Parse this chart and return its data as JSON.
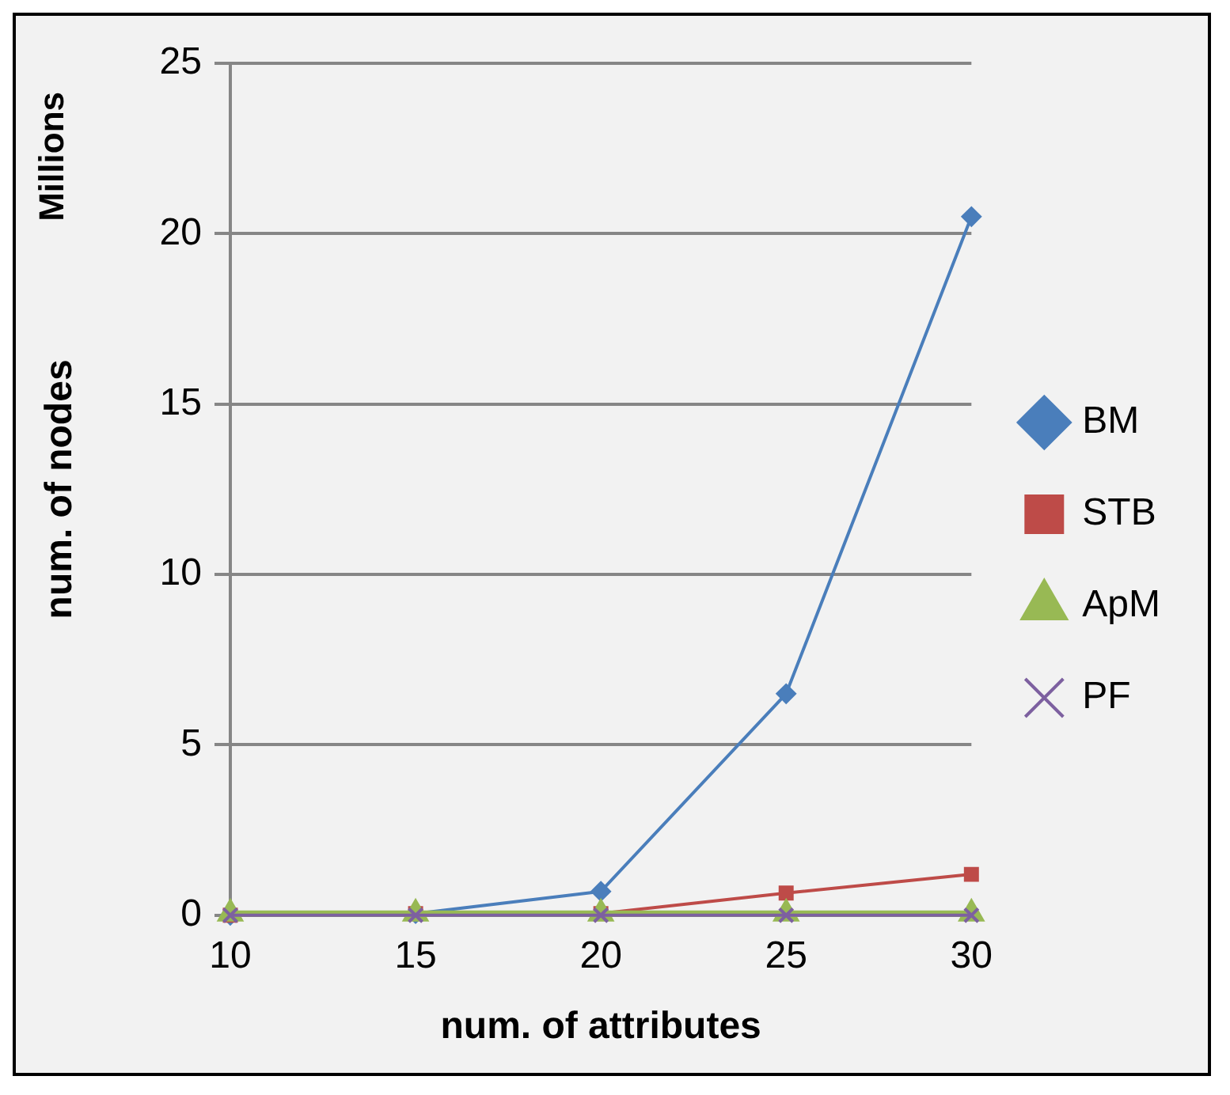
{
  "chart_data": {
    "type": "line",
    "xlabel": "num. of attributes",
    "ylabel": "num. of nodes",
    "annotations": [
      "Millions"
    ],
    "categories": [
      "10",
      "15",
      "20",
      "25",
      "30"
    ],
    "ylim": [
      0,
      25
    ],
    "yticks": [
      0,
      5,
      10,
      15,
      20,
      25
    ],
    "grid": "y",
    "legend": "right",
    "line_style": "solid",
    "series": [
      {
        "name": "BM",
        "color": "#4a7ebb",
        "marker": "diamond",
        "values": [
          0,
          0.05,
          0.7,
          6.5,
          20.5
        ]
      },
      {
        "name": "STB",
        "color": "#be4b48",
        "marker": "square",
        "values": [
          0,
          0.05,
          0.05,
          0.65,
          1.2
        ]
      },
      {
        "name": "ApM",
        "color": "#98b954",
        "marker": "triangle",
        "values": [
          0.05,
          0.05,
          0.05,
          0.05,
          0.05
        ]
      },
      {
        "name": "PF",
        "color": "#7d60a0",
        "marker": "cross",
        "values": [
          0,
          0,
          0,
          0,
          0
        ]
      }
    ]
  }
}
